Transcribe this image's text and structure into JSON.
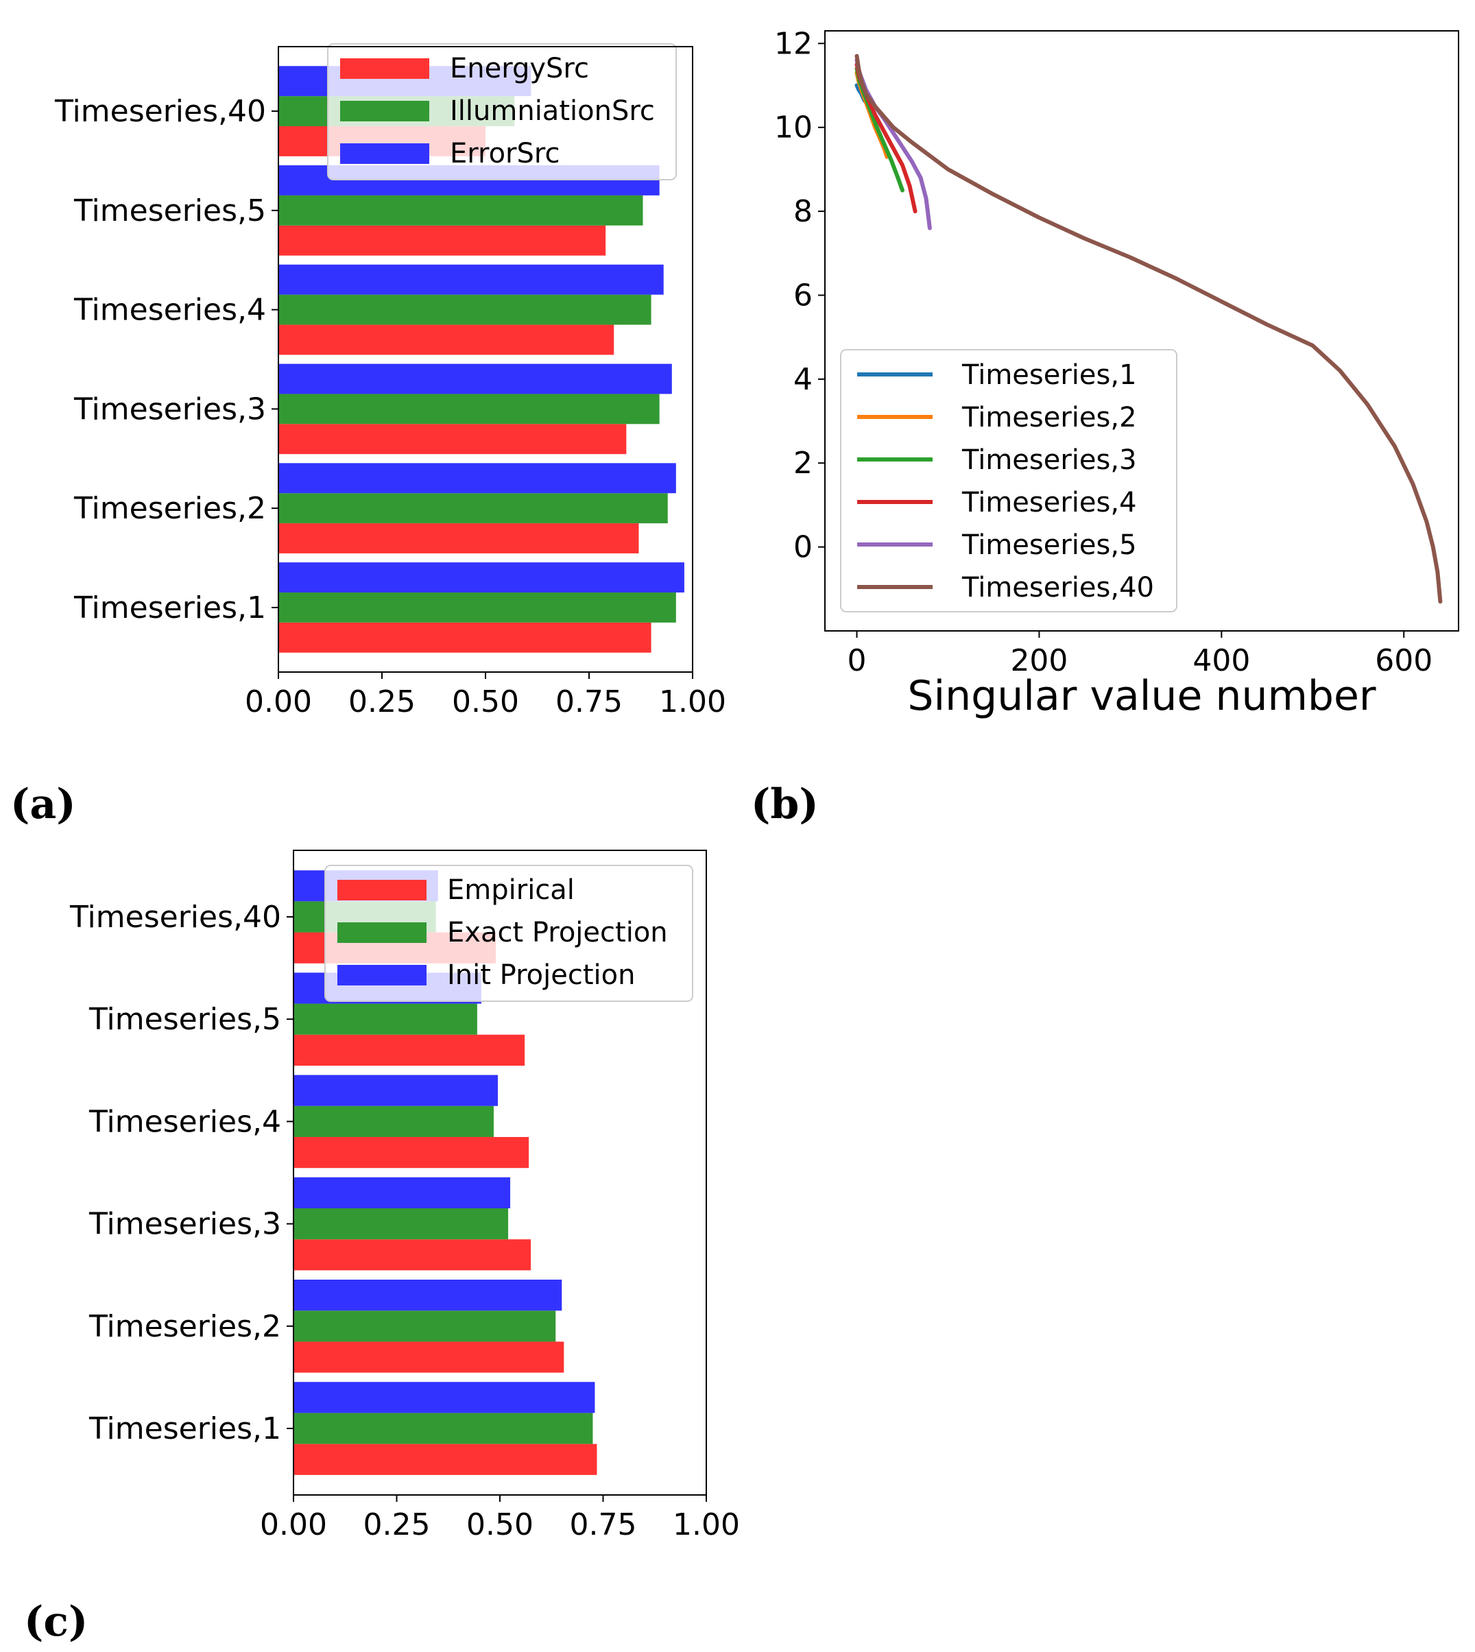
{
  "panel_labels": [
    "(a)",
    "(b)",
    "(c)"
  ],
  "chart_data": [
    {
      "panel": "(a)",
      "type": "bar",
      "orientation": "horizontal",
      "categories": [
        "Timeseries,1",
        "Timeseries,2",
        "Timeseries,3",
        "Timeseries,4",
        "Timeseries,5",
        "Timeseries,40"
      ],
      "series": [
        {
          "name": "EnergySrc",
          "color": "#ff3333",
          "values": [
            0.9,
            0.87,
            0.84,
            0.81,
            0.79,
            0.5
          ]
        },
        {
          "name": "IllumniationSrc",
          "color": "#339933",
          "values": [
            0.96,
            0.94,
            0.92,
            0.9,
            0.88,
            0.57
          ]
        },
        {
          "name": "ErrorSrc",
          "color": "#3333ff",
          "values": [
            0.98,
            0.96,
            0.95,
            0.93,
            0.92,
            0.61
          ]
        }
      ],
      "xlim": [
        0,
        1
      ],
      "xticks": [
        "0.00",
        "0.25",
        "0.50",
        "0.75",
        "1.00"
      ],
      "legend": "top-right"
    },
    {
      "panel": "(b)",
      "type": "line",
      "xlabel": "Singular value number",
      "xlim": [
        -35,
        660
      ],
      "ylim": [
        -2,
        12.3
      ],
      "xticks": [
        "0",
        "200",
        "400",
        "600"
      ],
      "yticks": [
        "0",
        "2",
        "4",
        "6",
        "8",
        "10",
        "12"
      ],
      "series": [
        {
          "name": "Timeseries,1",
          "color": "#1f77b4",
          "x": [
            0,
            2,
            5,
            8,
            12
          ],
          "y": [
            11.0,
            10.9,
            10.8,
            10.65,
            10.55
          ]
        },
        {
          "name": "Timeseries,2",
          "color": "#ff7f0e",
          "x": [
            0,
            2,
            5,
            10,
            15,
            20,
            25,
            30,
            33
          ],
          "y": [
            11.3,
            11.1,
            10.9,
            10.6,
            10.3,
            10.0,
            9.75,
            9.5,
            9.3
          ]
        },
        {
          "name": "Timeseries,3",
          "color": "#2ca02c",
          "x": [
            0,
            3,
            8,
            15,
            22,
            30,
            38,
            45,
            50
          ],
          "y": [
            11.4,
            11.1,
            10.8,
            10.4,
            10.0,
            9.6,
            9.2,
            8.8,
            8.5
          ]
        },
        {
          "name": "Timeseries,4",
          "color": "#d62728",
          "x": [
            0,
            3,
            10,
            20,
            30,
            40,
            50,
            58,
            64
          ],
          "y": [
            11.5,
            11.2,
            10.8,
            10.3,
            9.9,
            9.5,
            9.1,
            8.6,
            8.0
          ]
        },
        {
          "name": "Timeseries,5",
          "color": "#9467bd",
          "x": [
            0,
            3,
            10,
            20,
            30,
            45,
            60,
            70,
            76,
            80
          ],
          "y": [
            11.6,
            11.3,
            10.9,
            10.5,
            10.2,
            9.7,
            9.2,
            8.8,
            8.3,
            7.6
          ]
        },
        {
          "name": "Timeseries,40",
          "color": "#8c564b",
          "x": [
            0,
            2,
            5,
            10,
            20,
            40,
            60,
            100,
            150,
            200,
            250,
            300,
            350,
            400,
            450,
            500,
            530,
            560,
            590,
            610,
            625,
            632,
            637,
            640
          ],
          "y": [
            11.7,
            11.4,
            11.1,
            10.8,
            10.5,
            10.0,
            9.65,
            9.0,
            8.4,
            7.85,
            7.35,
            6.9,
            6.4,
            5.85,
            5.3,
            4.8,
            4.2,
            3.4,
            2.4,
            1.5,
            0.6,
            0.0,
            -0.6,
            -1.3
          ]
        }
      ],
      "legend": "lower-left"
    },
    {
      "panel": "(c)",
      "type": "bar",
      "orientation": "horizontal",
      "categories": [
        "Timeseries,1",
        "Timeseries,2",
        "Timeseries,3",
        "Timeseries,4",
        "Timeseries,5",
        "Timeseries,40"
      ],
      "series": [
        {
          "name": "Empirical",
          "color": "#ff3333",
          "values": [
            0.735,
            0.655,
            0.575,
            0.57,
            0.56,
            0.49
          ]
        },
        {
          "name": "Exact Projection",
          "color": "#339933",
          "values": [
            0.725,
            0.635,
            0.52,
            0.485,
            0.445,
            0.345
          ]
        },
        {
          "name": "Init Projection",
          "color": "#3333ff",
          "values": [
            0.73,
            0.65,
            0.525,
            0.495,
            0.455,
            0.35
          ]
        }
      ],
      "xlim": [
        0,
        1
      ],
      "xticks": [
        "0.00",
        "0.25",
        "0.50",
        "0.75",
        "1.00"
      ],
      "legend": "top-right"
    }
  ]
}
